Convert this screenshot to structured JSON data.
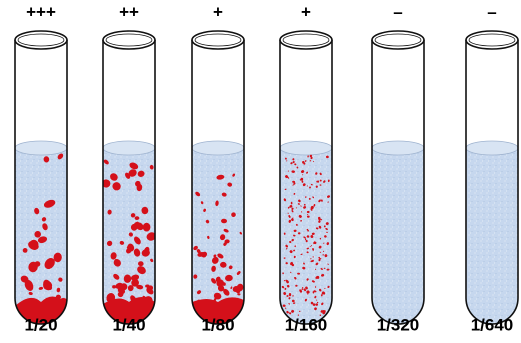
{
  "tubes": [
    {
      "top_label": "+++",
      "dilution": "1/20"
    },
    {
      "top_label": "++",
      "dilution": "1/40"
    },
    {
      "top_label": "+",
      "dilution": "1/80"
    },
    {
      "top_label": "+",
      "dilution": "1/160"
    },
    {
      "top_label": "–",
      "dilution": "1/320"
    },
    {
      "top_label": "–",
      "dilution": "1/640"
    }
  ]
}
